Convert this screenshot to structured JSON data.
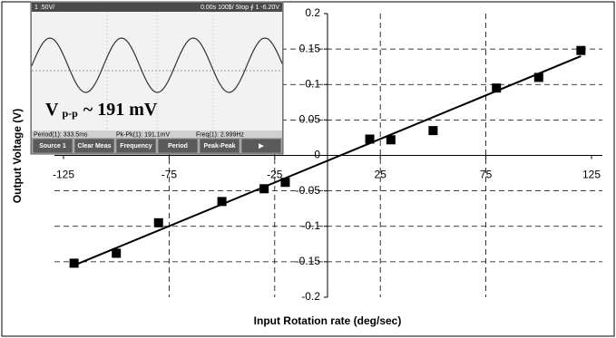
{
  "chart_data": {
    "type": "scatter",
    "x_label": "Input Rotation rate (deg/sec)",
    "y_label": "Output Voltage (V)",
    "x": [
      -120,
      -100,
      -80,
      -50,
      -30,
      -20,
      20,
      30,
      50,
      80,
      100,
      120
    ],
    "values": [
      -0.152,
      -0.138,
      -0.095,
      -0.065,
      -0.047,
      -0.038,
      0.023,
      0.022,
      0.035,
      0.095,
      0.11,
      0.148
    ],
    "color": "#000000",
    "fit": {
      "x": [
        -120,
        120
      ],
      "values": [
        -0.155,
        0.14
      ],
      "color": "#000000"
    },
    "xlim": [
      -125,
      125
    ],
    "xticks": [
      -125,
      -75,
      -25,
      25,
      75,
      125
    ],
    "ylim": [
      -0.2,
      0.2
    ],
    "yticks": [
      0.2,
      0.15,
      0.1,
      0.05,
      0,
      -0.05,
      -0.1,
      -0.15,
      -0.2
    ],
    "grid": true
  },
  "inset": {
    "top_left": "1 .50V/",
    "top_right": "0.00s  100$/  Stop  ∮ 1  -6.20V",
    "vpp_main": "V",
    "vpp_sub": "p-p",
    "vpp_rest": "~ 191 mV",
    "status": [
      "Period(1): 333.5ms",
      "Pk-Pk(1): 191.1mV",
      "Freq(1): 2.999Hz"
    ],
    "buttons": [
      "Source 1",
      "Clear Meas",
      "Frequency",
      "Period",
      "Peak-Peak",
      "▶"
    ]
  }
}
